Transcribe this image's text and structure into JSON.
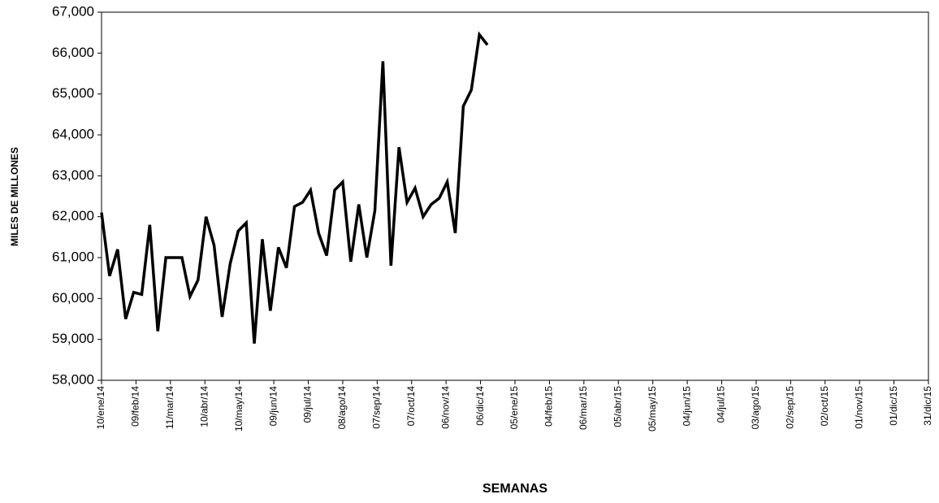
{
  "chart_data": {
    "type": "line",
    "y_label": "MILES DE MILLONES",
    "x_label": "SEMANAS",
    "color": "#000000",
    "grid": false,
    "x": [
      0,
      7,
      14,
      21,
      28,
      35,
      42,
      49,
      56,
      63,
      70,
      77,
      84,
      91,
      98,
      105,
      112,
      119,
      126,
      133,
      140,
      147,
      154,
      161,
      168,
      175,
      182,
      189,
      196,
      203,
      210,
      217,
      224,
      231,
      238,
      245,
      252,
      259,
      266,
      273,
      280,
      287,
      294,
      301,
      308,
      315,
      322,
      329,
      336
    ],
    "values": [
      62100,
      60550,
      61200,
      59500,
      60150,
      60100,
      61800,
      59200,
      61000,
      61000,
      61000,
      60050,
      60450,
      62000,
      61300,
      59550,
      60850,
      61650,
      61850,
      58900,
      61450,
      59700,
      61250,
      60750,
      62250,
      62350,
      62650,
      61600,
      61050,
      62650,
      62850,
      60900,
      62300,
      61000,
      62150,
      65800,
      60800,
      63700,
      62350,
      62700,
      62000,
      62300,
      62450,
      62850,
      61600,
      64700,
      65100,
      66450,
      66200
    ],
    "xlim": [
      0,
      720
    ],
    "xticks": [
      {
        "value": 0,
        "label": "10/ene/14"
      },
      {
        "value": 30,
        "label": "09/feb/14"
      },
      {
        "value": 60,
        "label": "11/mar/14"
      },
      {
        "value": 90,
        "label": "10/abr/14"
      },
      {
        "value": 120,
        "label": "10/may/14"
      },
      {
        "value": 150,
        "label": "09/jun/14"
      },
      {
        "value": 180,
        "label": "09/jul/14"
      },
      {
        "value": 210,
        "label": "08/ago/14"
      },
      {
        "value": 240,
        "label": "07/sep/14"
      },
      {
        "value": 270,
        "label": "07/oct/14"
      },
      {
        "value": 300,
        "label": "06/nov/14"
      },
      {
        "value": 330,
        "label": "06/dic/14"
      },
      {
        "value": 360,
        "label": "05/ene/15"
      },
      {
        "value": 390,
        "label": "04/feb/15"
      },
      {
        "value": 420,
        "label": "06/mar/15"
      },
      {
        "value": 450,
        "label": "05/abr/15"
      },
      {
        "value": 480,
        "label": "05/may/15"
      },
      {
        "value": 510,
        "label": "04/jun/15"
      },
      {
        "value": 540,
        "label": "04/jul/15"
      },
      {
        "value": 570,
        "label": "03/ago/15"
      },
      {
        "value": 600,
        "label": "02/sep/15"
      },
      {
        "value": 630,
        "label": "02/oct/15"
      },
      {
        "value": 660,
        "label": "01/nov/15"
      },
      {
        "value": 690,
        "label": "01/dic/15"
      },
      {
        "value": 720,
        "label": "31/dic/15"
      }
    ],
    "ylim": [
      58000,
      67000
    ],
    "yticks": [
      {
        "value": 58000,
        "label": "58,000"
      },
      {
        "value": 59000,
        "label": "59,000"
      },
      {
        "value": 60000,
        "label": "60,000"
      },
      {
        "value": 61000,
        "label": "61,000"
      },
      {
        "value": 62000,
        "label": "62,000"
      },
      {
        "value": 63000,
        "label": "63,000"
      },
      {
        "value": 64000,
        "label": "64,000"
      },
      {
        "value": 65000,
        "label": "65,000"
      },
      {
        "value": 66000,
        "label": "66,000"
      },
      {
        "value": 67000,
        "label": "67,000"
      }
    ]
  }
}
